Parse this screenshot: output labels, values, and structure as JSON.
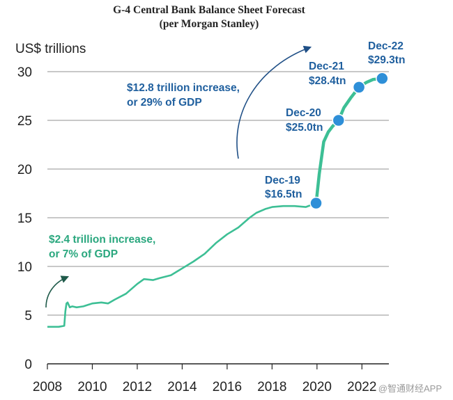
{
  "header": {
    "title": "G-4 Central Bank Balance Sheet Forecast",
    "subtitle": "(per Morgan Stanley)"
  },
  "watermark": "@智通财经APP",
  "chart_data": {
    "type": "line",
    "ylabel": "US$ trillions",
    "xlim": [
      2008,
      2023.2
    ],
    "ylim": [
      0,
      30
    ],
    "x_ticks": [
      "2008",
      "2010",
      "2012",
      "2014",
      "2016",
      "2018",
      "2020",
      "2022"
    ],
    "y_ticks": [
      "0",
      "5",
      "10",
      "15",
      "20",
      "25",
      "30"
    ],
    "grid": true,
    "line_color": "#3dbf95",
    "marker_color": "#2e8fd8",
    "historical": {
      "x": [
        2008.0,
        2008.5,
        2008.75,
        2008.8,
        2008.85,
        2008.9,
        2009.0,
        2009.1,
        2009.3,
        2009.6,
        2010.0,
        2010.4,
        2010.7,
        2011.0,
        2011.5,
        2012.0,
        2012.3,
        2012.7,
        2013.0,
        2013.5,
        2014.0,
        2014.5,
        2015.0,
        2015.5,
        2016.0,
        2016.5,
        2017.0,
        2017.3,
        2017.7,
        2018.0,
        2018.5,
        2019.0,
        2019.5,
        2019.96
      ],
      "y": [
        3.8,
        3.8,
        3.9,
        5.4,
        6.2,
        6.3,
        5.8,
        5.9,
        5.8,
        5.9,
        6.2,
        6.3,
        6.2,
        6.6,
        7.2,
        8.2,
        8.7,
        8.6,
        8.8,
        9.1,
        9.8,
        10.5,
        11.3,
        12.4,
        13.3,
        14.0,
        15.0,
        15.5,
        15.9,
        16.1,
        16.2,
        16.2,
        16.1,
        16.5
      ]
    },
    "forecast": {
      "x": [
        2019.96,
        2020.1,
        2020.3,
        2020.5,
        2020.7,
        2020.96,
        2021.2,
        2021.5,
        2021.87,
        2022.2,
        2022.5,
        2022.9
      ],
      "y": [
        16.5,
        19.5,
        22.8,
        23.8,
        24.4,
        25.0,
        26.3,
        27.3,
        28.4,
        28.9,
        29.2,
        29.3
      ]
    },
    "markers": [
      {
        "x": 2019.96,
        "y": 16.5,
        "line1": "Dec-19",
        "line2": "$16.5tn"
      },
      {
        "x": 2020.96,
        "y": 25.0,
        "line1": "Dec-20",
        "line2": "$25.0tn"
      },
      {
        "x": 2021.87,
        "y": 28.4,
        "line1": "Dec-21",
        "line2": "$28.4tn"
      },
      {
        "x": 2022.9,
        "y": 29.3,
        "line1": "Dec-22",
        "line2": "$29.3tn"
      }
    ],
    "annotations": [
      {
        "line1": "$12.8 trillion increase,",
        "line2": "or 29% of GDP",
        "color": "#1f5f9e"
      },
      {
        "line1": "$2.4 trillion increase,",
        "line2": "or 7% of GDP",
        "color": "#2aa77e"
      }
    ]
  }
}
